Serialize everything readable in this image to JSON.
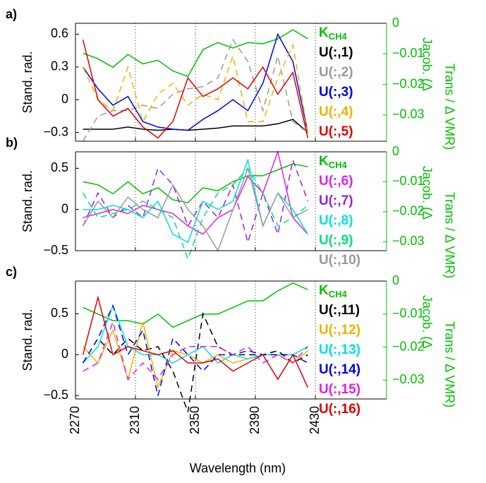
{
  "chart_data": [
    {
      "type": "line",
      "panel_label": "a)",
      "ylabel": "Stand. rad.",
      "y2label": [
        "Jacob. (Δ",
        "Trans / Δ VMR)"
      ],
      "x": [
        2275,
        2285,
        2295,
        2305,
        2315,
        2325,
        2335,
        2345,
        2355,
        2365,
        2375,
        2385,
        2395,
        2405,
        2415,
        2425
      ],
      "xlim": [
        2270,
        2477.5
      ],
      "xticks": [
        2270,
        2310,
        2350,
        2390,
        2430
      ],
      "xgrid": true,
      "xtick_labels": false,
      "ylim": [
        -0.38,
        0.7
      ],
      "yticks": [
        {
          "value": -0.3,
          "label": "−0.3"
        },
        0,
        0.3,
        0.6
      ],
      "y2lim": [
        -0.0386,
        0
      ],
      "y2ticks": [
        {
          "value": -0.03,
          "label": "−0.03"
        },
        {
          "value": -0.02,
          "label": "−0.02"
        },
        {
          "value": -0.01,
          "label": "−0.01"
        },
        0
      ],
      "y2color": "#00c000",
      "series": [
        {
          "name": "K",
          "subscript": "CH4",
          "color": "#00c000",
          "axis": "y2",
          "dashed": false,
          "values": [
            -0.0098,
            -0.0116,
            -0.0144,
            -0.0102,
            -0.0133,
            -0.0121,
            -0.0156,
            -0.0174,
            -0.0086,
            -0.0063,
            -0.0081,
            -0.0063,
            -0.0067,
            -0.0051,
            -0.0021,
            -0.0051
          ]
        },
        {
          "name": "U(:,1)",
          "color": "#000000",
          "dashed": false,
          "values": [
            -0.27,
            -0.27,
            -0.27,
            -0.25,
            -0.27,
            -0.28,
            -0.27,
            -0.28,
            -0.27,
            -0.26,
            -0.24,
            -0.24,
            -0.24,
            -0.22,
            -0.18,
            -0.3
          ]
        },
        {
          "name": "U(:,2)",
          "color": "#999999",
          "dashed": true,
          "values": [
            -0.38,
            -0.15,
            -0.1,
            -0.1,
            -0.05,
            -0.08,
            0.05,
            0.1,
            0.12,
            0.2,
            0.55,
            0.35,
            -0.1,
            0.4,
            -0.2,
            -0.3
          ]
        },
        {
          "name": "U(:,3)",
          "color": "#0000e0",
          "dashed": false,
          "values": [
            0.3,
            0.1,
            -0.05,
            0.03,
            -0.2,
            -0.25,
            -0.27,
            -0.28,
            -0.18,
            -0.1,
            0.0,
            -0.1,
            0.15,
            0.6,
            0.35,
            -0.3
          ]
        },
        {
          "name": "U(:,4)",
          "color": "#f0b000",
          "dashed": true,
          "values": [
            0.3,
            0.0,
            -0.1,
            0.3,
            -0.2,
            0.05,
            0.15,
            -0.05,
            0.05,
            0.0,
            0.4,
            -0.2,
            -0.2,
            0.2,
            0.5,
            -0.3
          ]
        },
        {
          "name": "U(:,5)",
          "color": "#e00000",
          "dashed": false,
          "values": [
            0.55,
            0.0,
            -0.15,
            -0.08,
            -0.25,
            -0.35,
            -0.2,
            0.2,
            0.03,
            0.1,
            0.2,
            0.1,
            0.3,
            0.05,
            0.25,
            -0.35
          ]
        }
      ]
    },
    {
      "type": "line",
      "panel_label": "b)",
      "ylabel": "Stand. rad.",
      "y2label": [
        "Jacob. (Δ",
        "Trans / Δ VMR)"
      ],
      "x": [
        2275,
        2285,
        2295,
        2305,
        2315,
        2325,
        2335,
        2345,
        2355,
        2365,
        2375,
        2385,
        2395,
        2405,
        2415,
        2425
      ],
      "xlim": [
        2270,
        2477.5
      ],
      "xticks": [
        2270,
        2310,
        2350,
        2390,
        2430
      ],
      "xgrid": true,
      "xtick_labels": false,
      "ylim": [
        -0.5,
        0.7
      ],
      "yticks": [
        {
          "value": -0.5,
          "label": "−0.5"
        },
        0,
        0.5
      ],
      "y2lim": [
        -0.033,
        0
      ],
      "y2ticks": [
        {
          "value": -0.03,
          "label": "−0.03"
        },
        {
          "value": -0.02,
          "label": "−0.02"
        },
        {
          "value": -0.01,
          "label": "−0.01"
        },
        0
      ],
      "y2color": "#00c000",
      "series": [
        {
          "name": "K",
          "subscript": "CH4",
          "color": "#00c000",
          "axis": "y2",
          "dashed": false,
          "values": [
            -0.01,
            -0.011,
            -0.014,
            -0.01,
            -0.014,
            -0.012,
            -0.016,
            -0.017,
            -0.012,
            -0.013,
            -0.01,
            -0.008,
            -0.008,
            -0.006,
            -0.004,
            -0.005
          ]
        },
        {
          "name": "U(:,6)",
          "color": "#e020e0",
          "dashed": false,
          "values": [
            -0.1,
            -0.05,
            0.0,
            -0.05,
            0.05,
            0.0,
            -0.05,
            -0.2,
            -0.3,
            -0.1,
            0.0,
            0.4,
            0.2,
            0.7,
            -0.1,
            -0.3
          ]
        },
        {
          "name": "U(:,7)",
          "color": "#9a20e0",
          "dashed": true,
          "values": [
            -0.2,
            0.2,
            -0.1,
            0.05,
            -0.1,
            0.5,
            0.3,
            -0.2,
            0.1,
            -0.1,
            0.3,
            -0.4,
            0.2,
            -0.3,
            0.6,
            0.1
          ]
        },
        {
          "name": "U(:,8)",
          "color": "#00e0e0",
          "dashed": false,
          "values": [
            0.0,
            0.0,
            0.05,
            0.0,
            -0.1,
            0.1,
            -0.3,
            -0.4,
            0.1,
            0.0,
            0.1,
            0.6,
            -0.2,
            0.2,
            0.0,
            -0.3
          ]
        },
        {
          "name": "U(:,9)",
          "color": "#00e080",
          "dashed": true,
          "values": [
            0.2,
            -0.1,
            -0.05,
            0.0,
            0.1,
            0.0,
            -0.1,
            -0.6,
            -0.1,
            0.2,
            0.3,
            0.5,
            0.2,
            -0.2,
            -0.1,
            0.05
          ]
        },
        {
          "name": "U(:,10)",
          "color": "#999999",
          "dashed": false,
          "values": [
            -0.2,
            0.1,
            -0.1,
            0.15,
            0.0,
            -0.1,
            0.3,
            0.0,
            -0.2,
            -0.5,
            0.0,
            0.5,
            -0.2,
            0.2,
            -0.1,
            0.0
          ]
        }
      ]
    },
    {
      "type": "line",
      "panel_label": "c)",
      "ylabel": "Stand. rad.",
      "y2label": [
        "Jacob. (Δ",
        "Trans / Δ VMR)"
      ],
      "xlabel": "Wavelength (nm)",
      "x": [
        2275,
        2285,
        2295,
        2305,
        2315,
        2325,
        2335,
        2345,
        2355,
        2365,
        2375,
        2385,
        2395,
        2405,
        2415,
        2425
      ],
      "xlim": [
        2270,
        2477.5
      ],
      "xticks": [
        2270,
        2310,
        2350,
        2390,
        2430
      ],
      "xgrid": true,
      "xtick_labels": true,
      "ylim": [
        -0.54,
        0.9
      ],
      "yticks": [
        {
          "value": -0.5,
          "label": "−0.5"
        },
        0,
        0.5
      ],
      "y2lim": [
        -0.0357,
        0
      ],
      "y2ticks": [
        {
          "value": -0.03,
          "label": "−0.03"
        },
        {
          "value": -0.02,
          "label": "−0.02"
        },
        {
          "value": -0.01,
          "label": "−0.01"
        },
        0
      ],
      "y2color": "#00c000",
      "series": [
        {
          "name": "K",
          "subscript": "CH4",
          "color": "#00c000",
          "axis": "y2",
          "dashed": false,
          "values": [
            -0.008,
            -0.01,
            -0.012,
            -0.012,
            -0.013,
            -0.01,
            -0.014,
            -0.012,
            -0.01,
            -0.01,
            -0.008,
            -0.006,
            -0.006,
            -0.003,
            -0.0006,
            -0.0026
          ]
        },
        {
          "name": "U(:,11)",
          "color": "#000000",
          "dashed": true,
          "values": [
            -0.1,
            0.2,
            0.0,
            0.2,
            0.05,
            0.1,
            -0.2,
            -0.7,
            0.5,
            0.1,
            0.0,
            0.0,
            0.0,
            0.05,
            -0.1,
            0.0
          ]
        },
        {
          "name": "U(:,12)",
          "color": "#f0b000",
          "dashed": false,
          "values": [
            0.1,
            -0.1,
            0.3,
            -0.3,
            0.4,
            -0.4,
            0.05,
            0.0,
            -0.1,
            0.0,
            -0.1,
            -0.05,
            0.0,
            0.0,
            -0.1,
            0.05
          ]
        },
        {
          "name": "U(:,13)",
          "color": "#00e0e0",
          "dashed": false,
          "values": [
            -0.1,
            0.1,
            0.6,
            0.1,
            0.0,
            0.0,
            -0.1,
            0.0,
            0.1,
            -0.1,
            0.0,
            -0.05,
            0.0,
            0.0,
            0.0,
            0.1
          ]
        },
        {
          "name": "U(:,14)",
          "color": "#0000e0",
          "dashed": true,
          "values": [
            -0.1,
            0.2,
            0.6,
            0.0,
            0.3,
            -0.5,
            0.2,
            0.0,
            -0.2,
            0.0,
            0.0,
            0.05,
            0.0,
            0.0,
            0.0,
            -0.1
          ]
        },
        {
          "name": "U(:,15)",
          "color": "#e020e0",
          "dashed": true,
          "values": [
            -0.2,
            -0.1,
            0.4,
            -0.3,
            -0.1,
            -0.3,
            0.0,
            0.1,
            0.1,
            0.1,
            0.0,
            0.1,
            -0.1,
            0.0,
            -0.1,
            0.1
          ]
        },
        {
          "name": "U(:,16)",
          "color": "#e00000",
          "dashed": false,
          "values": [
            0.0,
            0.7,
            0.0,
            0.1,
            0.05,
            0.0,
            0.05,
            -0.1,
            -0.1,
            -0.05,
            -0.2,
            -0.1,
            0.0,
            -0.3,
            0.0,
            -0.4
          ]
        }
      ]
    }
  ]
}
